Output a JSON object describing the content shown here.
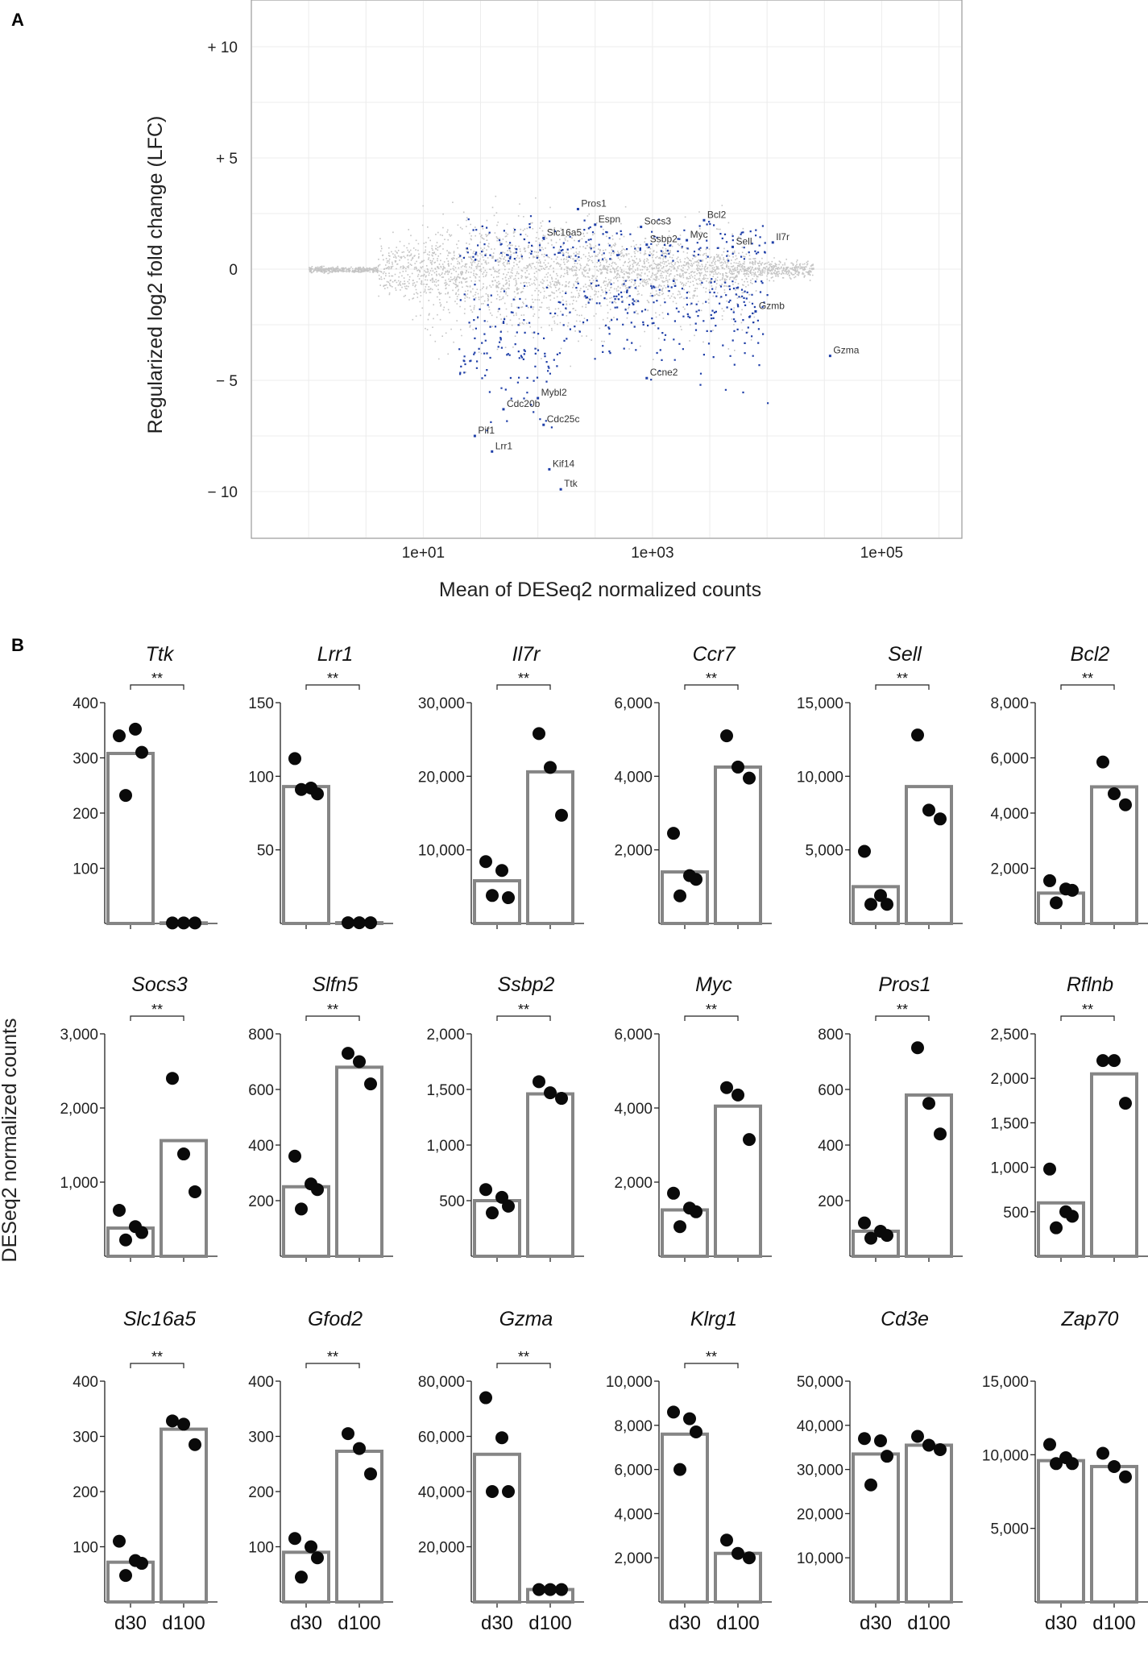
{
  "panel_a": {
    "letter": "A",
    "type": "scatter",
    "xlabel": "Mean of DESeq2 normalized counts",
    "ylabel": "Regularized log2 fold change (LFC)",
    "x_log10_range": [
      -0.5,
      5.7
    ],
    "ylim": [
      -12,
      12
    ],
    "x_ticks": [
      {
        "v": 1,
        "label": "1e+01"
      },
      {
        "v": 3,
        "label": "1e+03"
      },
      {
        "v": 5,
        "label": "1e+05"
      }
    ],
    "y_ticks": [
      {
        "v": 10,
        "label": "+ 10"
      },
      {
        "v": 5,
        "label": "+ 5"
      },
      {
        "v": 0,
        "label": "0"
      },
      {
        "v": -5,
        "label": "− 5"
      },
      {
        "v": -10,
        "label": "− 10"
      }
    ],
    "colors": {
      "background_points": "#c4c4c4",
      "significant_points": "#1f3fa8",
      "grid": "#ececec",
      "frame": "#9a9a9a"
    },
    "annotated_genes": [
      {
        "gene": "Pros1",
        "logx": 2.35,
        "lfc": 2.7
      },
      {
        "gene": "Espn",
        "logx": 2.5,
        "lfc": 2.0
      },
      {
        "gene": "Socs3",
        "logx": 2.9,
        "lfc": 1.9
      },
      {
        "gene": "Bcl2",
        "logx": 3.45,
        "lfc": 2.2
      },
      {
        "gene": "Slc16a5",
        "logx": 2.05,
        "lfc": 1.4
      },
      {
        "gene": "Myc",
        "logx": 3.3,
        "lfc": 1.3
      },
      {
        "gene": "Ssbp2",
        "logx": 2.95,
        "lfc": 1.1
      },
      {
        "gene": "Sell",
        "logx": 3.7,
        "lfc": 1.0
      },
      {
        "gene": "Il7r",
        "logx": 4.05,
        "lfc": 1.2
      },
      {
        "gene": "Gzmb",
        "logx": 3.9,
        "lfc": -1.9
      },
      {
        "gene": "Gzma",
        "logx": 4.55,
        "lfc": -3.9
      },
      {
        "gene": "Ccne2",
        "logx": 2.95,
        "lfc": -4.9
      },
      {
        "gene": "Cdc20b",
        "logx": 1.7,
        "lfc": -6.3
      },
      {
        "gene": "Mybl2",
        "logx": 2.0,
        "lfc": -5.8
      },
      {
        "gene": "Cdc25c",
        "logx": 2.05,
        "lfc": -7.0
      },
      {
        "gene": "Pif1",
        "logx": 1.45,
        "lfc": -7.5
      },
      {
        "gene": "Lrr1",
        "logx": 1.6,
        "lfc": -8.2
      },
      {
        "gene": "Kif14",
        "logx": 2.1,
        "lfc": -9.0
      },
      {
        "gene": "Ttk",
        "logx": 2.2,
        "lfc": -9.9
      }
    ]
  },
  "panel_b": {
    "letter": "B",
    "ylabel": "DESeq2 normalized counts",
    "categories": [
      "d30",
      "d100"
    ],
    "colors": {
      "bar_edge": "#858585",
      "dot": "#0a0a0a"
    },
    "genes": [
      {
        "name": "Ttk",
        "ymax": 400,
        "ticks": [
          {
            "v": 100,
            "label": "100"
          },
          {
            "v": 200,
            "label": "200"
          },
          {
            "v": 300,
            "label": "300"
          },
          {
            "v": 400,
            "label": "400"
          }
        ],
        "means": [
          308,
          1
        ],
        "d30": [
          340,
          352,
          310,
          232
        ],
        "d100": [
          1,
          1,
          1
        ],
        "sig": "**"
      },
      {
        "name": "Lrr1",
        "ymax": 150,
        "ticks": [
          {
            "v": 50,
            "label": "50"
          },
          {
            "v": 100,
            "label": "100"
          },
          {
            "v": 150,
            "label": "150"
          }
        ],
        "means": [
          93,
          0.5
        ],
        "d30": [
          112,
          92,
          88,
          91
        ],
        "d100": [
          0.5,
          0.5,
          0.5
        ],
        "sig": "**"
      },
      {
        "name": "Il7r",
        "ymax": 30000,
        "ticks": [
          {
            "v": 10000,
            "label": "10,000"
          },
          {
            "v": 20000,
            "label": "20,000"
          },
          {
            "v": 30000,
            "label": "30,000"
          }
        ],
        "means": [
          5800,
          20600
        ],
        "d30": [
          8400,
          7200,
          3500,
          3800
        ],
        "d100": [
          25800,
          21200,
          14700
        ],
        "sig": "**"
      },
      {
        "name": "Ccr7",
        "ymax": 6000,
        "ticks": [
          {
            "v": 2000,
            "label": "2,000"
          },
          {
            "v": 4000,
            "label": "4,000"
          },
          {
            "v": 6000,
            "label": "6,000"
          }
        ],
        "means": [
          1400,
          4250
        ],
        "d30": [
          2450,
          1300,
          1200,
          750
        ],
        "d100": [
          5100,
          4250,
          3950
        ],
        "sig": "**"
      },
      {
        "name": "Sell",
        "ymax": 15000,
        "ticks": [
          {
            "v": 5000,
            "label": "5,000"
          },
          {
            "v": 10000,
            "label": "10,000"
          },
          {
            "v": 15000,
            "label": "15,000"
          }
        ],
        "means": [
          2500,
          9300
        ],
        "d30": [
          4900,
          1900,
          1300,
          1300
        ],
        "d100": [
          12800,
          7700,
          7100
        ],
        "sig": "**"
      },
      {
        "name": "Bcl2",
        "ymax": 8000,
        "ticks": [
          {
            "v": 2000,
            "label": "2,000"
          },
          {
            "v": 4000,
            "label": "4,000"
          },
          {
            "v": 6000,
            "label": "6,000"
          },
          {
            "v": 8000,
            "label": "8,000"
          }
        ],
        "means": [
          1100,
          4950
        ],
        "d30": [
          1550,
          1250,
          1200,
          750
        ],
        "d100": [
          5850,
          4700,
          4300
        ],
        "sig": "**"
      },
      {
        "name": "Socs3",
        "ymax": 3000,
        "ticks": [
          {
            "v": 1000,
            "label": "1,000"
          },
          {
            "v": 2000,
            "label": "2,000"
          },
          {
            "v": 3000,
            "label": "3,000"
          }
        ],
        "means": [
          380,
          1560
        ],
        "d30": [
          620,
          400,
          320,
          220
        ],
        "d100": [
          2400,
          1380,
          870
        ],
        "sig": "**"
      },
      {
        "name": "Slfn5",
        "ymax": 800,
        "ticks": [
          {
            "v": 200,
            "label": "200"
          },
          {
            "v": 400,
            "label": "400"
          },
          {
            "v": 600,
            "label": "600"
          },
          {
            "v": 800,
            "label": "800"
          }
        ],
        "means": [
          250,
          680
        ],
        "d30": [
          360,
          260,
          240,
          170
        ],
        "d100": [
          730,
          700,
          620
        ],
        "sig": "**"
      },
      {
        "name": "Ssbp2",
        "ymax": 2000,
        "ticks": [
          {
            "v": 500,
            "label": "500"
          },
          {
            "v": 1000,
            "label": "1,000"
          },
          {
            "v": 1500,
            "label": "1,500"
          },
          {
            "v": 2000,
            "label": "2,000"
          }
        ],
        "means": [
          500,
          1460
        ],
        "d30": [
          600,
          530,
          450,
          390
        ],
        "d100": [
          1570,
          1470,
          1420
        ],
        "sig": "**"
      },
      {
        "name": "Myc",
        "ymax": 6000,
        "ticks": [
          {
            "v": 2000,
            "label": "2,000"
          },
          {
            "v": 4000,
            "label": "4,000"
          },
          {
            "v": 6000,
            "label": "6,000"
          }
        ],
        "means": [
          1250,
          4050
        ],
        "d30": [
          1700,
          1300,
          1200,
          800
        ],
        "d100": [
          4550,
          4350,
          3150
        ],
        "sig": "**"
      },
      {
        "name": "Pros1",
        "ymax": 800,
        "ticks": [
          {
            "v": 200,
            "label": "200"
          },
          {
            "v": 400,
            "label": "400"
          },
          {
            "v": 600,
            "label": "600"
          },
          {
            "v": 800,
            "label": "800"
          }
        ],
        "means": [
          90,
          580
        ],
        "d30": [
          120,
          90,
          75,
          65
        ],
        "d100": [
          750,
          550,
          440
        ],
        "sig": "**"
      },
      {
        "name": "Rflnb",
        "ymax": 2500,
        "ticks": [
          {
            "v": 500,
            "label": "500"
          },
          {
            "v": 1000,
            "label": "1,000"
          },
          {
            "v": 1500,
            "label": "1,500"
          },
          {
            "v": 2000,
            "label": "2,000"
          },
          {
            "v": 2500,
            "label": "2,500"
          }
        ],
        "means": [
          600,
          2050
        ],
        "d30": [
          980,
          500,
          450,
          320
        ],
        "d100": [
          2200,
          2200,
          1720
        ],
        "sig": "**"
      },
      {
        "name": "Slc16a5",
        "ymax": 400,
        "ticks": [
          {
            "v": 100,
            "label": "100"
          },
          {
            "v": 200,
            "label": "200"
          },
          {
            "v": 300,
            "label": "300"
          },
          {
            "v": 400,
            "label": "400"
          }
        ],
        "means": [
          72,
          313
        ],
        "d30": [
          110,
          75,
          70,
          48
        ],
        "d100": [
          328,
          322,
          285
        ],
        "sig": "**"
      },
      {
        "name": "Gfod2",
        "ymax": 400,
        "ticks": [
          {
            "v": 100,
            "label": "100"
          },
          {
            "v": 200,
            "label": "200"
          },
          {
            "v": 300,
            "label": "300"
          },
          {
            "v": 400,
            "label": "400"
          }
        ],
        "means": [
          90,
          273
        ],
        "d30": [
          115,
          100,
          80,
          45
        ],
        "d100": [
          305,
          278,
          232
        ],
        "sig": "**"
      },
      {
        "name": "Gzma",
        "ymax": 80000,
        "ticks": [
          {
            "v": 20000,
            "label": "20,000"
          },
          {
            "v": 40000,
            "label": "40,000"
          },
          {
            "v": 60000,
            "label": "60,000"
          },
          {
            "v": 80000,
            "label": "80,000"
          }
        ],
        "means": [
          53500,
          4500
        ],
        "d30": [
          74000,
          59500,
          40000,
          40000
        ],
        "d100": [
          4500,
          4500,
          4500
        ],
        "sig": "**"
      },
      {
        "name": "Klrg1",
        "ymax": 10000,
        "ticks": [
          {
            "v": 2000,
            "label": "2,000"
          },
          {
            "v": 4000,
            "label": "4,000"
          },
          {
            "v": 6000,
            "label": "6,000"
          },
          {
            "v": 8000,
            "label": "8,000"
          },
          {
            "v": 10000,
            "label": "10,000"
          }
        ],
        "means": [
          7600,
          2200
        ],
        "d30": [
          8600,
          8300,
          7700,
          6000
        ],
        "d100": [
          2800,
          2200,
          2000
        ],
        "sig": "**"
      },
      {
        "name": "Cd3e",
        "ymax": 50000,
        "ticks": [
          {
            "v": 10000,
            "label": "10,000"
          },
          {
            "v": 20000,
            "label": "20,000"
          },
          {
            "v": 30000,
            "label": "30,000"
          },
          {
            "v": 40000,
            "label": "40,000"
          },
          {
            "v": 50000,
            "label": "50,000"
          }
        ],
        "means": [
          33500,
          35500
        ],
        "d30": [
          37000,
          36500,
          33000,
          26500
        ],
        "d100": [
          37500,
          35500,
          34500
        ],
        "sig": ""
      },
      {
        "name": "Zap70",
        "ymax": 15000,
        "ticks": [
          {
            "v": 5000,
            "label": "5,000"
          },
          {
            "v": 10000,
            "label": "10,000"
          },
          {
            "v": 15000,
            "label": "15,000"
          }
        ],
        "means": [
          9600,
          9200
        ],
        "d30": [
          10700,
          9800,
          9400,
          9400
        ],
        "d100": [
          10100,
          9200,
          8500
        ],
        "sig": ""
      }
    ]
  }
}
